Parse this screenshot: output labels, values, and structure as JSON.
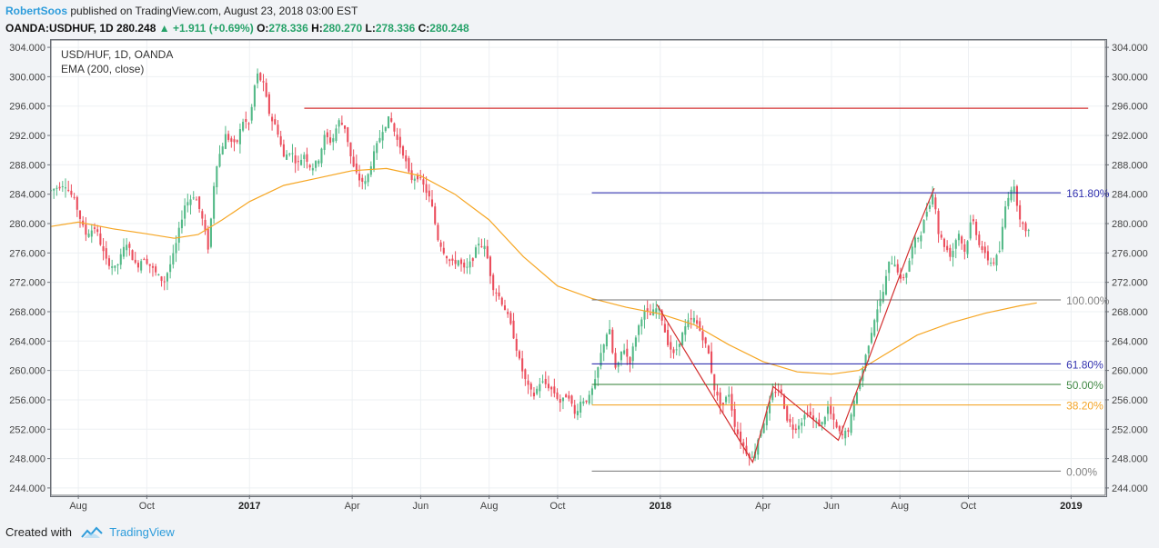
{
  "header": {
    "author": "RobertSoos",
    "published_text": " published on TradingView.com, August 23, 2018 03:00 EST"
  },
  "ohlc": {
    "symbol": "OANDA:USDHUF, 1D",
    "last": "280.248",
    "change": "+1.911 (+0.69%)",
    "o_label": "O:",
    "o": "278.336",
    "h_label": "H:",
    "h": "280.270",
    "l_label": "L:",
    "l": "278.336",
    "c_label": "C:",
    "c": "280.248"
  },
  "legend": {
    "title": "USD/HUF, 1D, OANDA",
    "indicator": "EMA (200, close)"
  },
  "footer": {
    "created_with": "Created with",
    "brand": "TradingView"
  },
  "colors": {
    "up": "#53b987",
    "down": "#eb4d5c",
    "ema": "#f6a623",
    "resistance": "#d32f2f",
    "fib_161": "#1a1aa6",
    "fib_100": "#757575",
    "fib_618": "#1a1aa6",
    "fib_50": "#2e7d32",
    "fib_382": "#f39c12",
    "fib_0": "#757575",
    "pattern": "#d32f2f"
  },
  "chart_data": {
    "type": "candlestick",
    "title": "USD/HUF, 1D, OANDA",
    "ylim": [
      243,
      305
    ],
    "y_ticks": [
      "304.000",
      "300.000",
      "296.000",
      "292.000",
      "288.000",
      "284.000",
      "280.000",
      "276.000",
      "272.000",
      "268.000",
      "264.000",
      "260.000",
      "256.000",
      "252.000",
      "248.000",
      "244.000"
    ],
    "x_ticks": [
      {
        "label": "Aug",
        "t": 0.0,
        "bold": false
      },
      {
        "label": "Oct",
        "t": 2.0,
        "bold": false
      },
      {
        "label": "2017",
        "t": 5.0,
        "bold": true
      },
      {
        "label": "Apr",
        "t": 8.0,
        "bold": false
      },
      {
        "label": "Jun",
        "t": 10.0,
        "bold": false
      },
      {
        "label": "Aug",
        "t": 12.0,
        "bold": false
      },
      {
        "label": "Oct",
        "t": 14.0,
        "bold": false
      },
      {
        "label": "2018",
        "t": 17.0,
        "bold": true
      },
      {
        "label": "Apr",
        "t": 20.0,
        "bold": false
      },
      {
        "label": "Jun",
        "t": 22.0,
        "bold": false
      },
      {
        "label": "Aug",
        "t": 24.0,
        "bold": false
      },
      {
        "label": "Oct",
        "t": 26.0,
        "bold": false
      },
      {
        "label": "2019",
        "t": 29.0,
        "bold": true
      }
    ],
    "x_range": [
      -0.8,
      30.0
    ],
    "price_anchors": [
      [
        -0.8,
        284.5
      ],
      [
        -0.4,
        285.5
      ],
      [
        -0.1,
        283.0
      ],
      [
        0.2,
        278.5
      ],
      [
        0.5,
        279.5
      ],
      [
        0.8,
        275.0
      ],
      [
        1.1,
        273.8
      ],
      [
        1.4,
        277.5
      ],
      [
        1.7,
        274.0
      ],
      [
        1.9,
        275.5
      ],
      [
        2.3,
        273.0
      ],
      [
        2.5,
        272.0
      ],
      [
        2.8,
        276.0
      ],
      [
        3.1,
        282.5
      ],
      [
        3.4,
        284.0
      ],
      [
        3.6,
        281.0
      ],
      [
        3.8,
        276.5
      ],
      [
        4.0,
        287.5
      ],
      [
        4.3,
        292.0
      ],
      [
        4.6,
        290.5
      ],
      [
        4.8,
        294.0
      ],
      [
        5.0,
        293.5
      ],
      [
        5.2,
        300.5
      ],
      [
        5.4,
        299.0
      ],
      [
        5.6,
        294.5
      ],
      [
        5.8,
        293.0
      ],
      [
        6.0,
        289.0
      ],
      [
        6.2,
        290.0
      ],
      [
        6.4,
        288.0
      ],
      [
        6.6,
        289.5
      ],
      [
        6.8,
        287.5
      ],
      [
        7.0,
        288.5
      ],
      [
        7.2,
        292.0
      ],
      [
        7.4,
        291.0
      ],
      [
        7.6,
        294.0
      ],
      [
        7.8,
        293.0
      ],
      [
        8.0,
        288.0
      ],
      [
        8.2,
        286.0
      ],
      [
        8.4,
        285.5
      ],
      [
        8.6,
        289.0
      ],
      [
        8.9,
        293.0
      ],
      [
        9.1,
        294.5
      ],
      [
        9.3,
        291.5
      ],
      [
        9.5,
        289.5
      ],
      [
        9.7,
        286.0
      ],
      [
        9.9,
        286.5
      ],
      [
        10.1,
        285.0
      ],
      [
        10.3,
        283.0
      ],
      [
        10.5,
        278.0
      ],
      [
        10.7,
        276.0
      ],
      [
        10.9,
        274.5
      ],
      [
        11.1,
        275.0
      ],
      [
        11.3,
        273.5
      ],
      [
        11.5,
        275.0
      ],
      [
        11.7,
        277.5
      ],
      [
        11.9,
        276.5
      ],
      [
        12.1,
        271.5
      ],
      [
        12.3,
        270.0
      ],
      [
        12.5,
        268.0
      ],
      [
        12.7,
        265.0
      ],
      [
        12.9,
        261.0
      ],
      [
        13.1,
        258.0
      ],
      [
        13.3,
        256.5
      ],
      [
        13.5,
        258.5
      ],
      [
        13.7,
        258.0
      ],
      [
        13.9,
        257.0
      ],
      [
        14.1,
        255.5
      ],
      [
        14.3,
        257.0
      ],
      [
        14.5,
        254.0
      ],
      [
        14.7,
        256.0
      ],
      [
        14.9,
        256.0
      ],
      [
        15.1,
        258.5
      ],
      [
        15.3,
        263.0
      ],
      [
        15.5,
        266.0
      ],
      [
        15.6,
        262.5
      ],
      [
        15.7,
        260.0
      ],
      [
        15.8,
        261.0
      ],
      [
        15.9,
        263.5
      ],
      [
        16.1,
        261.0
      ],
      [
        16.3,
        265.0
      ],
      [
        16.5,
        268.0
      ],
      [
        16.7,
        267.5
      ],
      [
        16.9,
        268.5
      ],
      [
        17.0,
        268.0
      ],
      [
        17.2,
        264.0
      ],
      [
        17.4,
        262.0
      ],
      [
        17.6,
        264.5
      ],
      [
        17.8,
        266.5
      ],
      [
        18.0,
        267.0
      ],
      [
        18.2,
        265.0
      ],
      [
        18.4,
        262.5
      ],
      [
        18.6,
        257.0
      ],
      [
        18.8,
        255.0
      ],
      [
        19.0,
        257.0
      ],
      [
        19.2,
        252.0
      ],
      [
        19.5,
        249.0
      ],
      [
        19.7,
        248.0
      ],
      [
        19.9,
        251.5
      ],
      [
        20.1,
        254.0
      ],
      [
        20.3,
        257.0
      ],
      [
        20.5,
        257.5
      ],
      [
        20.7,
        253.5
      ],
      [
        20.9,
        252.0
      ],
      [
        21.1,
        253.0
      ],
      [
        21.3,
        254.5
      ],
      [
        21.5,
        253.0
      ],
      [
        21.7,
        252.5
      ],
      [
        21.9,
        255.0
      ],
      [
        22.1,
        252.5
      ],
      [
        22.3,
        251.0
      ],
      [
        22.5,
        252.0
      ],
      [
        22.7,
        256.5
      ],
      [
        22.9,
        260.0
      ],
      [
        23.1,
        264.0
      ],
      [
        23.3,
        268.0
      ],
      [
        23.5,
        270.5
      ],
      [
        23.7,
        275.0
      ],
      [
        23.9,
        274.5
      ],
      [
        24.0,
        272.0
      ],
      [
        24.2,
        273.5
      ],
      [
        24.4,
        277.5
      ],
      [
        24.6,
        278.5
      ],
      [
        24.8,
        282.0
      ],
      [
        25.0,
        284.5
      ],
      [
        25.1,
        279.0
      ],
      [
        25.3,
        277.0
      ],
      [
        25.5,
        275.5
      ],
      [
        25.7,
        279.0
      ],
      [
        25.9,
        276.0
      ],
      [
        26.1,
        281.0
      ],
      [
        26.3,
        277.5
      ],
      [
        26.5,
        275.5
      ],
      [
        26.7,
        274.5
      ],
      [
        26.9,
        276.0
      ],
      [
        27.1,
        283.0
      ],
      [
        27.3,
        285.5
      ],
      [
        27.5,
        281.0
      ],
      [
        27.7,
        278.3
      ],
      [
        27.8,
        280.2
      ]
    ],
    "ema_anchors": [
      [
        -0.8,
        279.6
      ],
      [
        0.0,
        280.2
      ],
      [
        1.0,
        279.3
      ],
      [
        2.0,
        278.6
      ],
      [
        2.8,
        278.0
      ],
      [
        3.5,
        278.5
      ],
      [
        4.2,
        280.5
      ],
      [
        5.0,
        283.0
      ],
      [
        6.0,
        285.2
      ],
      [
        7.0,
        286.2
      ],
      [
        8.0,
        287.2
      ],
      [
        9.0,
        287.5
      ],
      [
        10.0,
        286.5
      ],
      [
        11.0,
        284.0
      ],
      [
        12.0,
        280.5
      ],
      [
        13.0,
        275.5
      ],
      [
        14.0,
        271.5
      ],
      [
        15.0,
        269.8
      ],
      [
        16.0,
        268.6
      ],
      [
        17.0,
        267.7
      ],
      [
        18.0,
        266.2
      ],
      [
        19.0,
        263.5
      ],
      [
        20.0,
        261.2
      ],
      [
        21.0,
        259.8
      ],
      [
        22.0,
        259.5
      ],
      [
        22.8,
        260.0
      ],
      [
        23.5,
        262.0
      ],
      [
        24.5,
        264.8
      ],
      [
        25.5,
        266.5
      ],
      [
        26.5,
        267.8
      ],
      [
        27.5,
        268.8
      ],
      [
        28.0,
        269.2
      ]
    ],
    "resistance_line": {
      "t1": 6.6,
      "t2": 29.5,
      "y": 295.7
    },
    "fib_levels": [
      {
        "label": "161.80%",
        "y": 284.2,
        "color": "#1a1aa6"
      },
      {
        "label": "100.00%",
        "y": 269.6,
        "color": "#757575"
      },
      {
        "label": "61.80%",
        "y": 260.9,
        "color": "#1a1aa6"
      },
      {
        "label": "50.00%",
        "y": 258.1,
        "color": "#2e7d32"
      },
      {
        "label": "38.20%",
        "y": 255.3,
        "color": "#f39c12"
      },
      {
        "label": "0.00%",
        "y": 246.3,
        "color": "#757575"
      }
    ],
    "fib_range": {
      "t1": 15.0,
      "t2": 27.8
    },
    "pattern_points": [
      [
        16.9,
        269.0
      ],
      [
        19.7,
        247.5
      ],
      [
        20.3,
        257.8
      ],
      [
        22.2,
        250.5
      ],
      [
        24.4,
        278.0
      ],
      [
        25.0,
        284.8
      ]
    ]
  }
}
